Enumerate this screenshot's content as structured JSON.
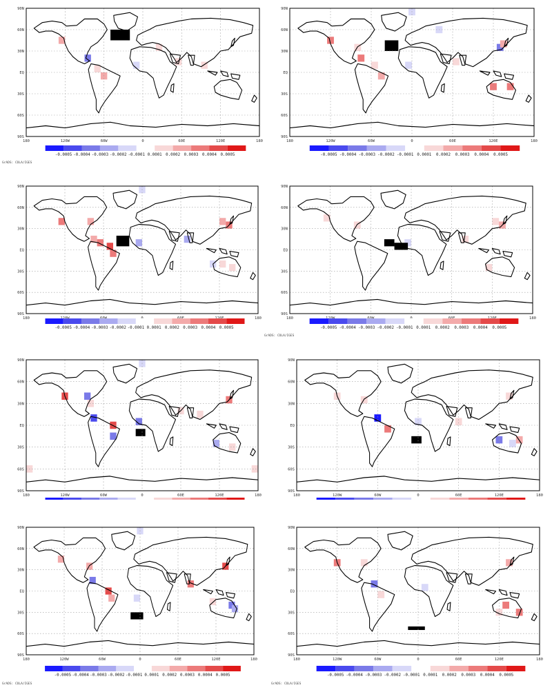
{
  "colors": {
    "blue_scale": [
      "#1a1aff",
      "#4a4aee",
      "#7a7ae8",
      "#aaaaf0",
      "#d8d8f8"
    ],
    "red_scale": [
      "#f8d8d8",
      "#f3aaaa",
      "#ec7a7a",
      "#e44a4a",
      "#e01818"
    ],
    "source_box": "#000000",
    "land_outline": "#000000",
    "grid": "#9a9a9a"
  },
  "axes": {
    "lat_labels": [
      "90N",
      "60N",
      "30N",
      "EQ",
      "30S",
      "60S",
      "90S"
    ],
    "lon_labels": [
      "180",
      "120W",
      "60W",
      "0",
      "60E",
      "120E",
      "180"
    ]
  },
  "legend": {
    "tick_labels": [
      "-0.0005",
      "-0.0004",
      "-0.0003",
      "-0.0002",
      "-0.0001",
      "0.0001",
      "0.0002",
      "0.0003",
      "0.0004",
      "0.0005"
    ]
  },
  "credit": "GrADS: COLA/IGES",
  "panels": [
    {
      "name": "panel-1",
      "show_legend_labels": true,
      "show_credit": true,
      "source_box": [
        [
          -50,
          60,
          -20,
          45
        ]
      ],
      "cells": [
        {
          "lon": -125,
          "lat": 45,
          "c": "r2"
        },
        {
          "lon": -85,
          "lat": 20,
          "c": "b3"
        },
        {
          "lon": -70,
          "lat": 5,
          "c": "r1"
        },
        {
          "lon": -60,
          "lat": -5,
          "c": "r2"
        },
        {
          "lon": -10,
          "lat": 10,
          "c": "b5"
        },
        {
          "lon": 25,
          "lat": 35,
          "c": "r1"
        },
        {
          "lon": 55,
          "lat": 15,
          "c": "r1"
        },
        {
          "lon": 95,
          "lat": 10,
          "c": "r1"
        }
      ]
    },
    {
      "name": "panel-2",
      "show_legend_labels": true,
      "show_credit": false,
      "source_box": [
        [
          -40,
          45,
          -20,
          30
        ]
      ],
      "cells": [
        {
          "lon": 0,
          "lat": 85,
          "c": "b5"
        },
        {
          "lon": 40,
          "lat": 60,
          "c": "b5"
        },
        {
          "lon": -120,
          "lat": 45,
          "c": "r3"
        },
        {
          "lon": -80,
          "lat": 35,
          "c": "r1"
        },
        {
          "lon": -75,
          "lat": 20,
          "c": "r3"
        },
        {
          "lon": -55,
          "lat": 10,
          "c": "r1"
        },
        {
          "lon": -45,
          "lat": -5,
          "c": "r2"
        },
        {
          "lon": -5,
          "lat": 10,
          "c": "b5"
        },
        {
          "lon": 130,
          "lat": 35,
          "c": "b3"
        },
        {
          "lon": 135,
          "lat": 40,
          "c": "r2"
        },
        {
          "lon": 120,
          "lat": -20,
          "c": "r3"
        },
        {
          "lon": 145,
          "lat": -20,
          "c": "r3"
        },
        {
          "lon": 65,
          "lat": 15,
          "c": "r1"
        }
      ]
    },
    {
      "name": "panel-3",
      "show_legend_labels": true,
      "show_credit": false,
      "source_box": [
        [
          -40,
          20,
          -20,
          5
        ]
      ],
      "cells": [
        {
          "lon": 0,
          "lat": 85,
          "c": "b5"
        },
        {
          "lon": -125,
          "lat": 40,
          "c": "r3"
        },
        {
          "lon": -80,
          "lat": 40,
          "c": "r2"
        },
        {
          "lon": -75,
          "lat": 15,
          "c": "r2"
        },
        {
          "lon": -65,
          "lat": 10,
          "c": "r3"
        },
        {
          "lon": -50,
          "lat": 5,
          "c": "r4"
        },
        {
          "lon": -45,
          "lat": -5,
          "c": "r3"
        },
        {
          "lon": -5,
          "lat": 10,
          "c": "b4"
        },
        {
          "lon": 70,
          "lat": 15,
          "c": "b4"
        },
        {
          "lon": 125,
          "lat": 40,
          "c": "r2"
        },
        {
          "lon": 135,
          "lat": 35,
          "c": "r3"
        },
        {
          "lon": 110,
          "lat": -20,
          "c": "b5"
        },
        {
          "lon": 125,
          "lat": -20,
          "c": "r1"
        },
        {
          "lon": 140,
          "lat": -25,
          "c": "r1"
        }
      ]
    },
    {
      "name": "panel-4",
      "show_legend_labels": true,
      "show_credit": true,
      "source_box": [
        [
          -40,
          15,
          -25,
          5
        ],
        [
          -25,
          10,
          -5,
          0
        ]
      ],
      "cells": [
        {
          "lon": -125,
          "lat": 45,
          "c": "r1"
        },
        {
          "lon": -80,
          "lat": 35,
          "c": "r1"
        },
        {
          "lon": -5,
          "lat": 10,
          "c": "b5"
        },
        {
          "lon": 125,
          "lat": 40,
          "c": "r1"
        },
        {
          "lon": 135,
          "lat": 35,
          "c": "r2"
        },
        {
          "lon": 80,
          "lat": 15,
          "c": "r1"
        },
        {
          "lon": 115,
          "lat": -25,
          "c": "r1"
        }
      ]
    },
    {
      "name": "panel-5",
      "show_legend_labels": false,
      "show_credit": false,
      "source_box": [
        [
          -10,
          -5,
          5,
          -15
        ]
      ],
      "cells": [
        {
          "lon": 0,
          "lat": 85,
          "c": "b5"
        },
        {
          "lon": -120,
          "lat": 40,
          "c": "r4"
        },
        {
          "lon": -85,
          "lat": 40,
          "c": "b3"
        },
        {
          "lon": -80,
          "lat": 30,
          "c": "r1"
        },
        {
          "lon": -75,
          "lat": 10,
          "c": "b2"
        },
        {
          "lon": -45,
          "lat": 0,
          "c": "r4"
        },
        {
          "lon": -45,
          "lat": -15,
          "c": "b3"
        },
        {
          "lon": -5,
          "lat": 5,
          "c": "b3"
        },
        {
          "lon": 60,
          "lat": 20,
          "c": "r1"
        },
        {
          "lon": 90,
          "lat": 15,
          "c": "r1"
        },
        {
          "lon": 135,
          "lat": 35,
          "c": "r3"
        },
        {
          "lon": 115,
          "lat": -25,
          "c": "b4"
        },
        {
          "lon": 140,
          "lat": -30,
          "c": "r1"
        },
        {
          "lon": -175,
          "lat": -60,
          "c": "r1"
        },
        {
          "lon": 175,
          "lat": -60,
          "c": "r1"
        }
      ]
    },
    {
      "name": "panel-6",
      "show_legend_labels": false,
      "show_credit": false,
      "source_box": [
        [
          -10,
          -15,
          5,
          -25
        ]
      ],
      "cells": [
        {
          "lon": -120,
          "lat": 40,
          "c": "r1"
        },
        {
          "lon": -80,
          "lat": 35,
          "c": "r1"
        },
        {
          "lon": -60,
          "lat": 10,
          "c": "b1"
        },
        {
          "lon": -45,
          "lat": -5,
          "c": "r3"
        },
        {
          "lon": 0,
          "lat": 5,
          "c": "b5"
        },
        {
          "lon": 60,
          "lat": 5,
          "c": "r1"
        },
        {
          "lon": 135,
          "lat": 40,
          "c": "r1"
        },
        {
          "lon": 120,
          "lat": -20,
          "c": "b3"
        },
        {
          "lon": 140,
          "lat": -25,
          "c": "b5"
        },
        {
          "lon": 150,
          "lat": -20,
          "c": "r2"
        }
      ]
    },
    {
      "name": "panel-7",
      "show_legend_labels": true,
      "show_credit": true,
      "source_box": [
        [
          -15,
          -30,
          5,
          -40
        ]
      ],
      "cells": [
        {
          "lon": 0,
          "lat": 85,
          "c": "b5"
        },
        {
          "lon": -125,
          "lat": 45,
          "c": "r2"
        },
        {
          "lon": -80,
          "lat": 35,
          "c": "r2"
        },
        {
          "lon": -75,
          "lat": 15,
          "c": "b3"
        },
        {
          "lon": -50,
          "lat": 0,
          "c": "r4"
        },
        {
          "lon": -45,
          "lat": -10,
          "c": "r2"
        },
        {
          "lon": -5,
          "lat": -10,
          "c": "b5"
        },
        {
          "lon": 80,
          "lat": 10,
          "c": "r3"
        },
        {
          "lon": 135,
          "lat": 35,
          "c": "r4"
        },
        {
          "lon": 115,
          "lat": -15,
          "c": "r1"
        },
        {
          "lon": 145,
          "lat": -20,
          "c": "b3"
        },
        {
          "lon": 150,
          "lat": -25,
          "c": "b4"
        }
      ]
    },
    {
      "name": "panel-8",
      "show_legend_labels": true,
      "show_credit": true,
      "source_box": [
        [
          -15,
          -50,
          10,
          -55
        ]
      ],
      "cells": [
        {
          "lon": -120,
          "lat": 40,
          "c": "r3"
        },
        {
          "lon": -80,
          "lat": 40,
          "c": "r1"
        },
        {
          "lon": -65,
          "lat": 10,
          "c": "b3"
        },
        {
          "lon": -55,
          "lat": -5,
          "c": "r1"
        },
        {
          "lon": 10,
          "lat": 5,
          "c": "b5"
        },
        {
          "lon": 135,
          "lat": 40,
          "c": "r2"
        },
        {
          "lon": 130,
          "lat": -20,
          "c": "r3"
        },
        {
          "lon": 150,
          "lat": -30,
          "c": "r3"
        },
        {
          "lon": 120,
          "lat": -30,
          "c": "r1"
        }
      ]
    }
  ]
}
